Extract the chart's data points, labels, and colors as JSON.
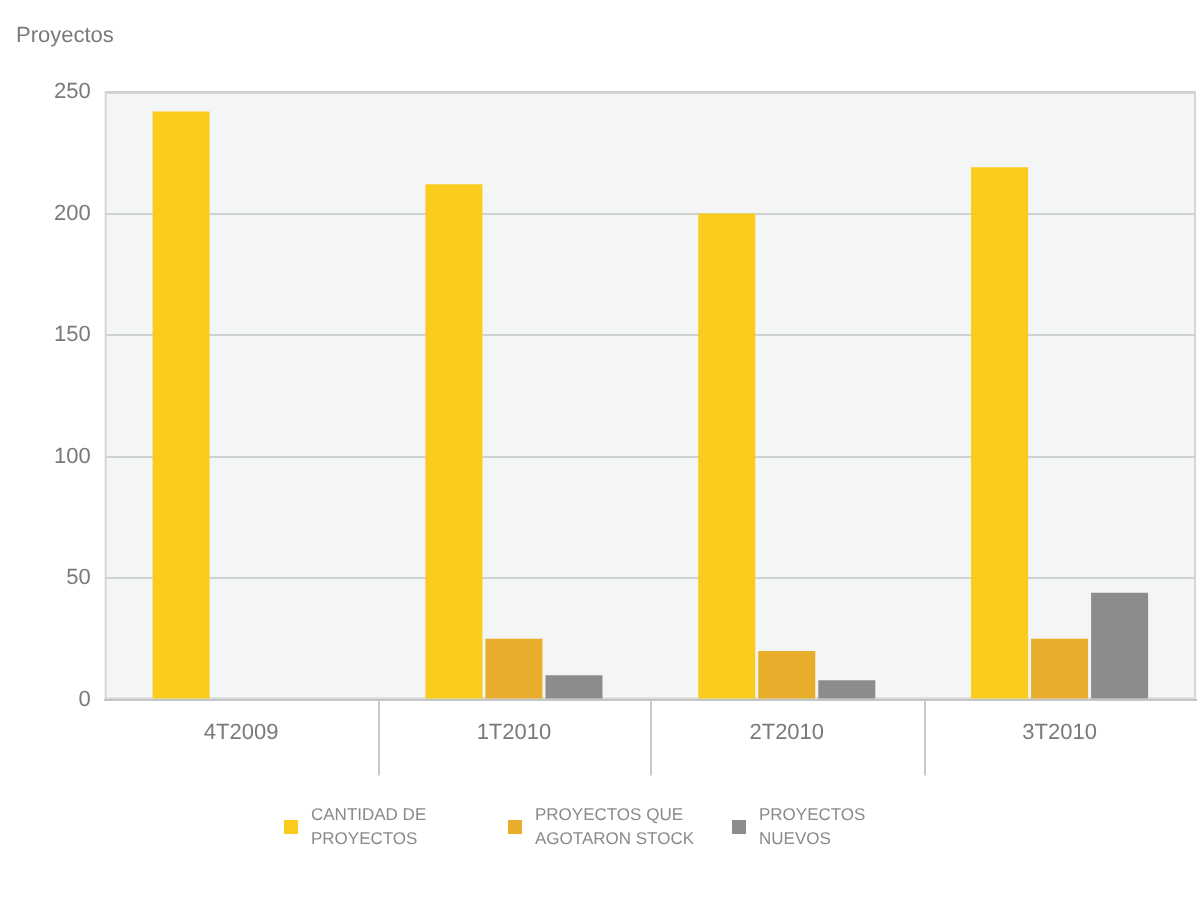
{
  "chart_data": {
    "type": "bar",
    "ylabel": "Proyectos",
    "categories": [
      "4T2009",
      "1T2010",
      "2T2010",
      "3T2010"
    ],
    "series": [
      {
        "name": "CANTIDAD DE PROYECTOS",
        "color": "#fbcb1d",
        "values": [
          242,
          212,
          200,
          219
        ]
      },
      {
        "name": "PROYECTOS QUE AGOTARON STOCK",
        "color": "#e8ad2b",
        "values": [
          null,
          25,
          20,
          25
        ]
      },
      {
        "name": "PROYECTOS NUEVOS",
        "color": "#8c8c8c",
        "values": [
          null,
          10,
          8,
          44
        ]
      }
    ],
    "ylim": [
      0,
      250
    ],
    "yticks": [
      0,
      50,
      100,
      150,
      200,
      250
    ],
    "grid": "y",
    "legend": "bottom"
  }
}
